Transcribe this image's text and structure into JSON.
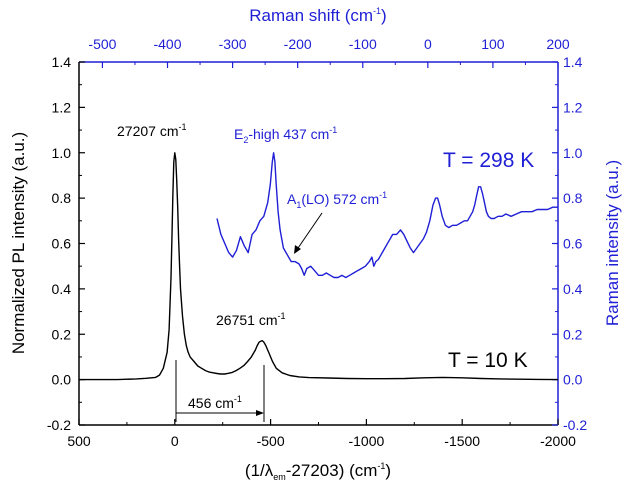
{
  "chart_data": {
    "type": "line",
    "axes": {
      "bottom": {
        "label": "(1/λem-27203) (cm-1)",
        "label_parts": [
          "(1/λ",
          "em",
          "-27203) (cm",
          "-1",
          ")"
        ],
        "ticks": [
          "500",
          "0",
          "-500",
          "-1000",
          "-1500",
          "-2000"
        ],
        "range": [
          500,
          -2000
        ]
      },
      "left": {
        "label": "Normalized PL intensity (a.u.)",
        "ticks": [
          "-0.2",
          "0.0",
          "0.2",
          "0.4",
          "0.6",
          "0.8",
          "1.0",
          "1.2",
          "1.4"
        ],
        "range": [
          -0.2,
          1.4
        ]
      },
      "top": {
        "label": "Raman shift (cm-1)",
        "label_parts": [
          "Raman shift (cm",
          "-1",
          ")"
        ],
        "ticks": [
          "-500",
          "-400",
          "-300",
          "-200",
          "-100",
          "0",
          "100",
          "200"
        ],
        "range": [
          -536,
          200
        ]
      },
      "right": {
        "label": "Raman intensity (a.u.)",
        "ticks": [
          "-0.2",
          "0.0",
          "0.2",
          "0.4",
          "0.6",
          "0.8",
          "1.0",
          "1.2",
          "1.4"
        ],
        "range": [
          -0.2,
          1.4
        ]
      }
    },
    "grid": false,
    "annotations": {
      "peak1": {
        "parts": [
          "27207 cm",
          "-1"
        ]
      },
      "peak2": {
        "parts": [
          "26751 cm",
          "-1"
        ]
      },
      "shift": {
        "parts": [
          "456 cm",
          "-1"
        ]
      },
      "e2": {
        "parts": [
          "E",
          "2",
          "-high 437 cm",
          "-1"
        ]
      },
      "a1": {
        "parts": [
          "A",
          "1",
          "(LO) 572 cm",
          "-1"
        ]
      },
      "t_low": "T = 10 K",
      "t_high": "T = 298 K"
    },
    "series": [
      {
        "axis": "bottom-left",
        "color": "#000000",
        "x": [
          500,
          400,
          300,
          200,
          150,
          100,
          80,
          60,
          40,
          30,
          20,
          15,
          10,
          5,
          0,
          -5,
          -10,
          -15,
          -20,
          -25,
          -30,
          -40,
          -50,
          -60,
          -70,
          -80,
          -100,
          -120,
          -140,
          -160,
          -180,
          -200,
          -220,
          -240,
          -260,
          -280,
          -300,
          -320,
          -340,
          -360,
          -380,
          -400,
          -420,
          -430,
          -440,
          -450,
          -456,
          -465,
          -475,
          -490,
          -510,
          -530,
          -560,
          -600,
          -650,
          -700,
          -800,
          -900,
          -1000,
          -1100,
          -1200,
          -1300,
          -1400,
          -1500,
          -1600,
          -1700,
          -1800,
          -1900,
          -2000
        ],
        "y": [
          0.0,
          0.0,
          0.0,
          0.003,
          0.006,
          0.01,
          0.02,
          0.05,
          0.12,
          0.22,
          0.45,
          0.62,
          0.82,
          0.96,
          1.0,
          0.97,
          0.88,
          0.76,
          0.62,
          0.5,
          0.4,
          0.28,
          0.2,
          0.15,
          0.12,
          0.1,
          0.08,
          0.06,
          0.05,
          0.04,
          0.033,
          0.03,
          0.027,
          0.025,
          0.025,
          0.028,
          0.032,
          0.04,
          0.05,
          0.062,
          0.08,
          0.1,
          0.13,
          0.15,
          0.165,
          0.17,
          0.172,
          0.165,
          0.15,
          0.12,
          0.08,
          0.05,
          0.03,
          0.018,
          0.012,
          0.009,
          0.007,
          0.005,
          0.004,
          0.004,
          0.005,
          0.008,
          0.01,
          0.008,
          0.005,
          0.003,
          0.002,
          0.001,
          0.0
        ]
      },
      {
        "axis": "top-right",
        "color": "#1f1fd6",
        "x": [
          -324,
          -318,
          -312,
          -306,
          -300,
          -294,
          -288,
          -282,
          -276,
          -270,
          -264,
          -258,
          -252,
          -246,
          -242,
          -239,
          -237,
          -235,
          -233,
          -230,
          -227,
          -222,
          -216,
          -210,
          -204,
          -198,
          -194,
          -190,
          -186,
          -180,
          -174,
          -168,
          -162,
          -156,
          -150,
          -144,
          -138,
          -132,
          -126,
          -120,
          -114,
          -108,
          -102,
          -96,
          -90,
          -86,
          -83,
          -80,
          -76,
          -72,
          -66,
          -60,
          -54,
          -48,
          -42,
          -37,
          -32,
          -27,
          -22,
          -17,
          -12,
          -7,
          -2,
          3,
          8,
          12,
          15,
          18,
          22,
          27,
          32,
          38,
          44,
          50,
          56,
          61,
          65,
          69,
          72,
          75,
          78,
          81,
          84,
          87,
          90,
          93,
          97,
          102,
          108,
          114,
          120,
          128,
          136,
          144,
          152,
          160,
          168,
          176,
          184,
          192,
          200
        ],
        "y": [
          0.71,
          0.64,
          0.6,
          0.56,
          0.54,
          0.57,
          0.63,
          0.59,
          0.56,
          0.64,
          0.66,
          0.7,
          0.72,
          0.78,
          0.86,
          0.96,
          1.0,
          0.96,
          0.86,
          0.74,
          0.66,
          0.58,
          0.55,
          0.52,
          0.52,
          0.51,
          0.49,
          0.46,
          0.49,
          0.5,
          0.48,
          0.46,
          0.46,
          0.47,
          0.46,
          0.45,
          0.45,
          0.46,
          0.45,
          0.46,
          0.47,
          0.48,
          0.49,
          0.5,
          0.52,
          0.54,
          0.5,
          0.52,
          0.53,
          0.55,
          0.58,
          0.61,
          0.64,
          0.64,
          0.66,
          0.64,
          0.61,
          0.58,
          0.56,
          0.58,
          0.6,
          0.62,
          0.65,
          0.7,
          0.77,
          0.8,
          0.8,
          0.77,
          0.72,
          0.68,
          0.67,
          0.68,
          0.68,
          0.69,
          0.7,
          0.7,
          0.72,
          0.74,
          0.77,
          0.81,
          0.85,
          0.85,
          0.82,
          0.78,
          0.74,
          0.72,
          0.71,
          0.71,
          0.72,
          0.72,
          0.73,
          0.72,
          0.73,
          0.74,
          0.74,
          0.74,
          0.75,
          0.75,
          0.75,
          0.76,
          0.76
        ]
      }
    ]
  }
}
